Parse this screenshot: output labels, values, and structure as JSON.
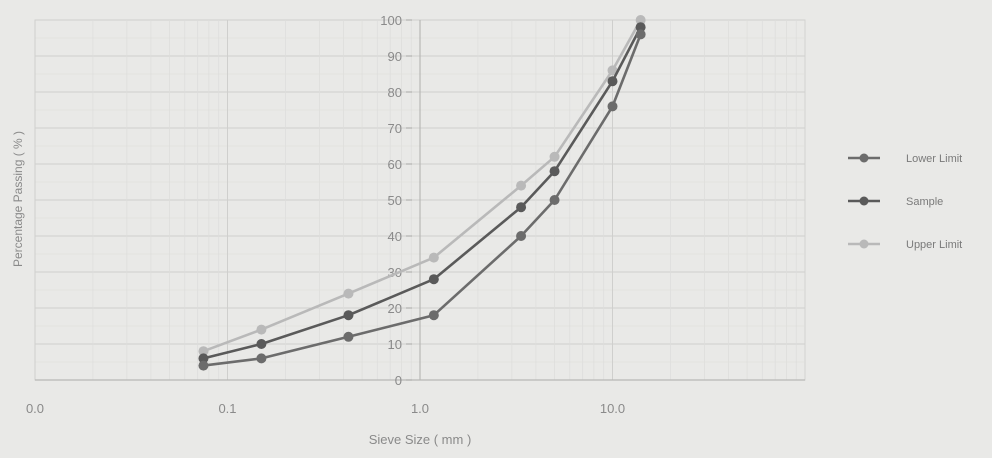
{
  "chart_data": {
    "type": "line",
    "xlabel": "Sieve Size ( mm )",
    "ylabel": "Percentage Passing ( % )",
    "x_scale": "log",
    "x_ticks": [
      {
        "value": 0.01,
        "label": "0.0"
      },
      {
        "value": 0.1,
        "label": "0.1"
      },
      {
        "value": 1,
        "label": "1.0"
      },
      {
        "value": 10,
        "label": "10.0"
      }
    ],
    "xlim": [
      0.01,
      100
    ],
    "ylim": [
      0,
      100
    ],
    "y_ticks": [
      0,
      10,
      20,
      30,
      40,
      50,
      60,
      70,
      80,
      90,
      100
    ],
    "grid": true,
    "legend_position": "right",
    "series": [
      {
        "name": "Lower Limit",
        "color": "#6c6c6c",
        "x": [
          0.075,
          0.15,
          0.425,
          1.18,
          3.35,
          5,
          10,
          14
        ],
        "y": [
          4,
          6,
          12,
          18,
          40,
          50,
          76,
          96
        ]
      },
      {
        "name": "Sample",
        "color": "#5a5a5a",
        "x": [
          0.075,
          0.15,
          0.425,
          1.18,
          3.35,
          5,
          10,
          14
        ],
        "y": [
          6,
          10,
          18,
          28,
          48,
          58,
          83,
          98
        ]
      },
      {
        "name": "Upper Limit",
        "color": "#b9b9b9",
        "x": [
          0.075,
          0.15,
          0.425,
          1.18,
          3.35,
          5,
          10,
          14
        ],
        "y": [
          8,
          14,
          24,
          34,
          54,
          62,
          86,
          100
        ]
      }
    ]
  }
}
